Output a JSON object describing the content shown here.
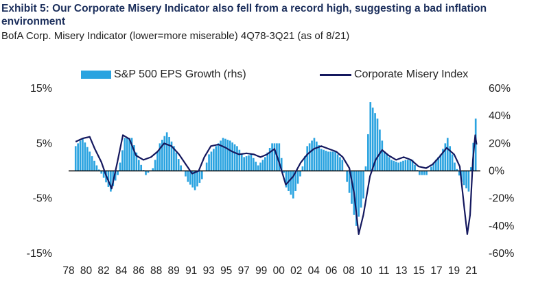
{
  "title": "Exhibit 5: Our Corporate Misery Indicator also fell from a record high, suggesting a bad inflation environment",
  "subtitle": "BofA Corp. Misery Indicator (lower=more miserable) 4Q78-3Q21 (as of 8/21)",
  "legend": {
    "bars_label": "S&P 500 EPS Growth (rhs)",
    "line_label": "Corporate Misery Index"
  },
  "colors": {
    "bars": "#2aa3e0",
    "line": "#14185e",
    "axis": "#000000"
  },
  "chart_data": {
    "type": "bar+line",
    "x_tick_labels": [
      "78",
      "80",
      "82",
      "84",
      "86",
      "88",
      "89",
      "91",
      "93",
      "95",
      "97",
      "99",
      "00",
      "02",
      "04",
      "06",
      "08",
      "10",
      "11",
      "13",
      "15",
      "17",
      "19",
      "21"
    ],
    "left_axis": {
      "ticks": [
        "15%",
        "5%",
        "-5%",
        "-15%"
      ],
      "ylim": [
        -15,
        15
      ],
      "unit": "%"
    },
    "right_axis": {
      "ticks": [
        "60%",
        "40%",
        "20%",
        "0%",
        "-20%",
        "-40%",
        "-60%"
      ],
      "ylim": [
        -60,
        60
      ],
      "unit": "%"
    },
    "series": [
      {
        "name": "S&P 500 EPS Growth (rhs)",
        "type": "bar",
        "axis": "right",
        "x_range": [
          1978.75,
          2021.5
        ],
        "points": [
          [
            1978.75,
            18
          ],
          [
            1979.5,
            24
          ],
          [
            1980.25,
            14
          ],
          [
            1981,
            4
          ],
          [
            1981.75,
            -5
          ],
          [
            1982.5,
            -15
          ],
          [
            1983.25,
            -3
          ],
          [
            1984,
            24
          ],
          [
            1984.75,
            24
          ],
          [
            1985.5,
            8
          ],
          [
            1986.25,
            -3
          ],
          [
            1987,
            2
          ],
          [
            1987.75,
            20
          ],
          [
            1988.5,
            28
          ],
          [
            1989.25,
            18
          ],
          [
            1990,
            4
          ],
          [
            1990.75,
            -8
          ],
          [
            1991.5,
            -14
          ],
          [
            1992.25,
            -6
          ],
          [
            1993,
            12
          ],
          [
            1993.75,
            18
          ],
          [
            1994.5,
            24
          ],
          [
            1995.25,
            22
          ],
          [
            1996,
            18
          ],
          [
            1996.75,
            10
          ],
          [
            1997.5,
            12
          ],
          [
            1998.25,
            4
          ],
          [
            1999,
            10
          ],
          [
            1999.75,
            20
          ],
          [
            2000.5,
            20
          ],
          [
            2001.25,
            -12
          ],
          [
            2002,
            -20
          ],
          [
            2002.75,
            -4
          ],
          [
            2003.5,
            18
          ],
          [
            2004.25,
            24
          ],
          [
            2005,
            16
          ],
          [
            2005.75,
            14
          ],
          [
            2006.5,
            14
          ],
          [
            2007.25,
            8
          ],
          [
            2008,
            -16
          ],
          [
            2008.75,
            -40
          ],
          [
            2009.5,
            -20
          ],
          [
            2010.25,
            50
          ],
          [
            2011,
            38
          ],
          [
            2011.75,
            14
          ],
          [
            2012.5,
            8
          ],
          [
            2013.25,
            6
          ],
          [
            2014,
            8
          ],
          [
            2014.75,
            8
          ],
          [
            2015.5,
            -3
          ],
          [
            2016.25,
            -3
          ],
          [
            2017,
            6
          ],
          [
            2017.75,
            12
          ],
          [
            2018.5,
            24
          ],
          [
            2019.25,
            6
          ],
          [
            2020,
            -8
          ],
          [
            2020.75,
            -15
          ],
          [
            2021.5,
            38
          ]
        ]
      },
      {
        "name": "Corporate Misery Index",
        "type": "line",
        "axis": "left",
        "points": [
          [
            1978.75,
            5.3
          ],
          [
            1979.5,
            5.9
          ],
          [
            1980.25,
            6.2
          ],
          [
            1980.8,
            4.0
          ],
          [
            1981.5,
            1.6
          ],
          [
            1982,
            -0.8
          ],
          [
            1982.6,
            -3.2
          ],
          [
            1983.2,
            1.5
          ],
          [
            1983.8,
            6.5
          ],
          [
            1984.5,
            5.8
          ],
          [
            1985.2,
            2.8
          ],
          [
            1986,
            2.0
          ],
          [
            1986.8,
            2.5
          ],
          [
            1987.5,
            3.5
          ],
          [
            1988.2,
            5.0
          ],
          [
            1989,
            4.5
          ],
          [
            1989.8,
            3.0
          ],
          [
            1990.6,
            1.0
          ],
          [
            1991.2,
            -0.5
          ],
          [
            1991.9,
            0.0
          ],
          [
            1992.5,
            2.5
          ],
          [
            1993.2,
            4.5
          ],
          [
            1994,
            4.8
          ],
          [
            1994.8,
            4.2
          ],
          [
            1995.5,
            3.5
          ],
          [
            1996.2,
            3.0
          ],
          [
            1997,
            3.2
          ],
          [
            1997.8,
            3.0
          ],
          [
            1998.5,
            2.5
          ],
          [
            1999.2,
            3.0
          ],
          [
            2000,
            4.0
          ],
          [
            2000.6,
            1.0
          ],
          [
            2001.2,
            -2.5
          ],
          [
            2002,
            -1.0
          ],
          [
            2002.8,
            1.5
          ],
          [
            2003.5,
            3.0
          ],
          [
            2004.2,
            4.0
          ],
          [
            2005,
            4.5
          ],
          [
            2005.8,
            4.0
          ],
          [
            2006.6,
            3.5
          ],
          [
            2007.3,
            2.5
          ],
          [
            2008,
            0.5
          ],
          [
            2008.5,
            -4.0
          ],
          [
            2009.0,
            -11.5
          ],
          [
            2009.5,
            -8.0
          ],
          [
            2010.2,
            -1.0
          ],
          [
            2010.8,
            2.0
          ],
          [
            2011.5,
            3.8
          ],
          [
            2012.2,
            2.8
          ],
          [
            2013,
            2.0
          ],
          [
            2013.8,
            2.5
          ],
          [
            2014.6,
            2.0
          ],
          [
            2015.4,
            0.8
          ],
          [
            2016.2,
            0.5
          ],
          [
            2016.9,
            1.2
          ],
          [
            2017.6,
            2.5
          ],
          [
            2018.4,
            4.2
          ],
          [
            2019.2,
            3.0
          ],
          [
            2019.8,
            0.8
          ],
          [
            2020.3,
            -7.0
          ],
          [
            2020.6,
            -11.5
          ],
          [
            2020.9,
            -8.0
          ],
          [
            2021.2,
            2.0
          ],
          [
            2021.45,
            6.5
          ],
          [
            2021.6,
            4.8
          ]
        ]
      }
    ],
    "grid": false,
    "zero_line": true,
    "legend_placement": "top"
  }
}
